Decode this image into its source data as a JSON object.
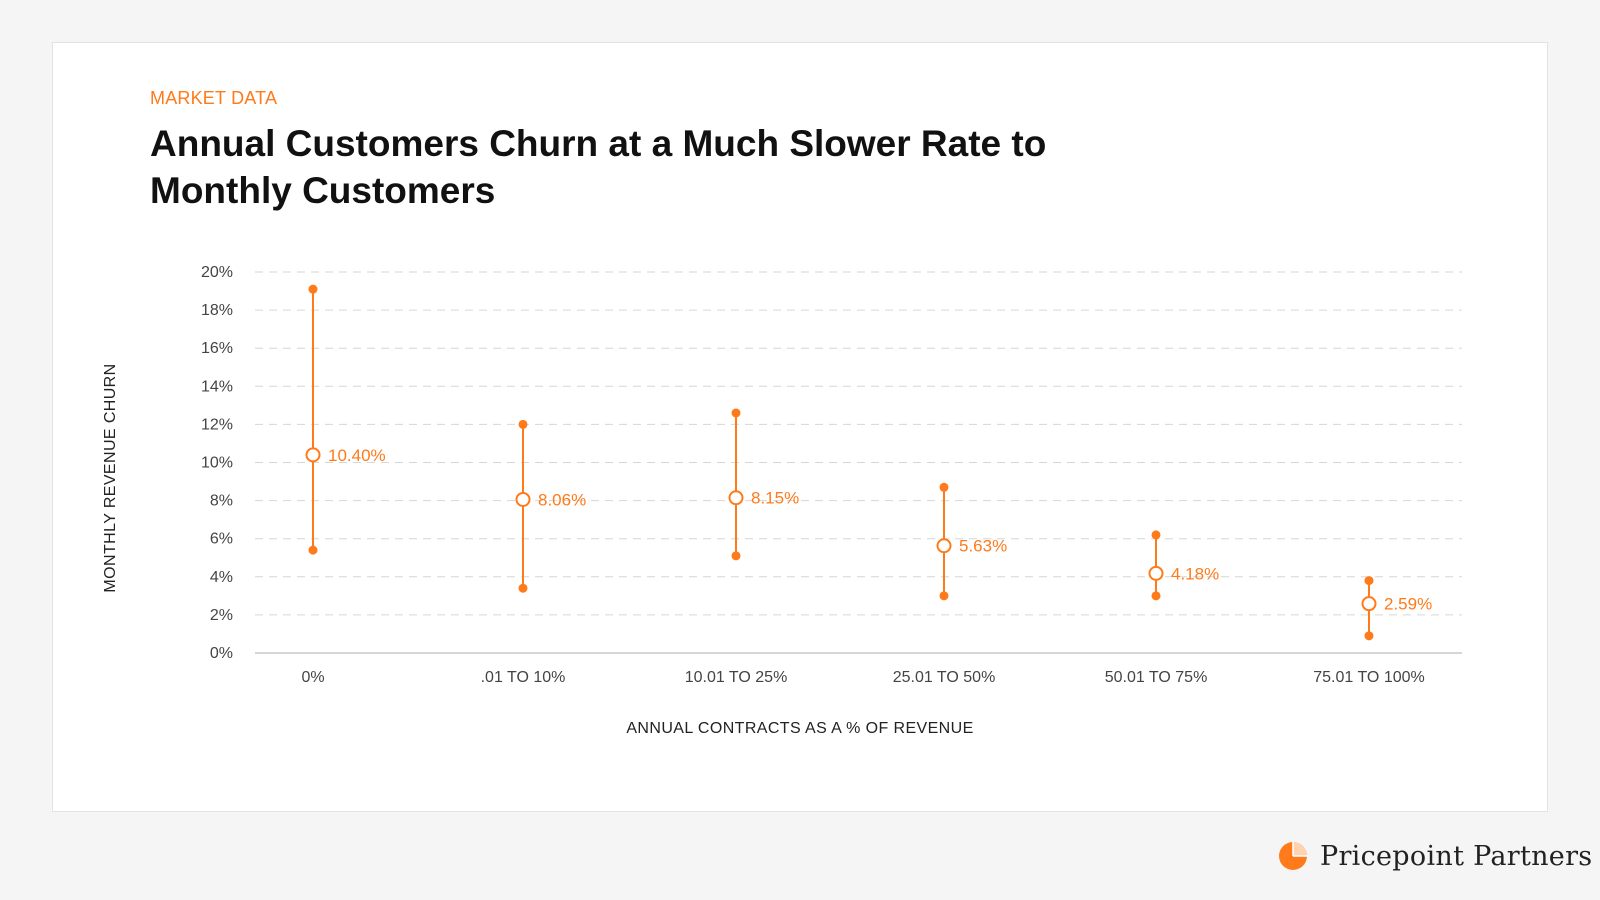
{
  "kicker": "MARKET DATA",
  "title": "Annual Customers Churn at a Much Slower Rate to Monthly Customers",
  "brand": {
    "name": "Pricepoint  Partners",
    "logo_icon": "pie-chart-logo-icon"
  },
  "colors": {
    "accent": "#ff7a1a",
    "grid": "#d6d6d6",
    "axis_text": "#444444",
    "title_text": "#111111",
    "background": "#f5f5f5",
    "card": "#ffffff"
  },
  "chart_data": {
    "type": "scatter",
    "subtype": "range-dot-plot",
    "xlabel": "ANNUAL CONTRACTS AS A % OF REVENUE",
    "ylabel": "MONTHLY REVENUE CHURN",
    "ylim": [
      0,
      20
    ],
    "ytick_step": 2,
    "ytick_labels": [
      "0%",
      "2%",
      "4%",
      "6%",
      "8%",
      "10%",
      "12%",
      "14%",
      "16%",
      "18%",
      "20%"
    ],
    "grid": true,
    "legend": "none",
    "categories": [
      "0%",
      ".01 TO 10%",
      "10.01 TO 25%",
      "25.01 TO 50%",
      "50.01 TO 75%",
      "75.01 TO 100%"
    ],
    "series": [
      {
        "values": [
          10.4,
          8.06,
          8.15,
          5.63,
          4.18,
          2.59
        ]
      },
      {
        "values": [
          19.1,
          12.0,
          12.6,
          8.7,
          6.2,
          3.8
        ]
      },
      {
        "values": [
          5.4,
          3.4,
          5.1,
          3.0,
          3.0,
          0.9
        ]
      }
    ],
    "data_labels": [
      "10.40%",
      "8.06%",
      "8.15%",
      "5.63%",
      "4.18%",
      "2.59%"
    ]
  }
}
